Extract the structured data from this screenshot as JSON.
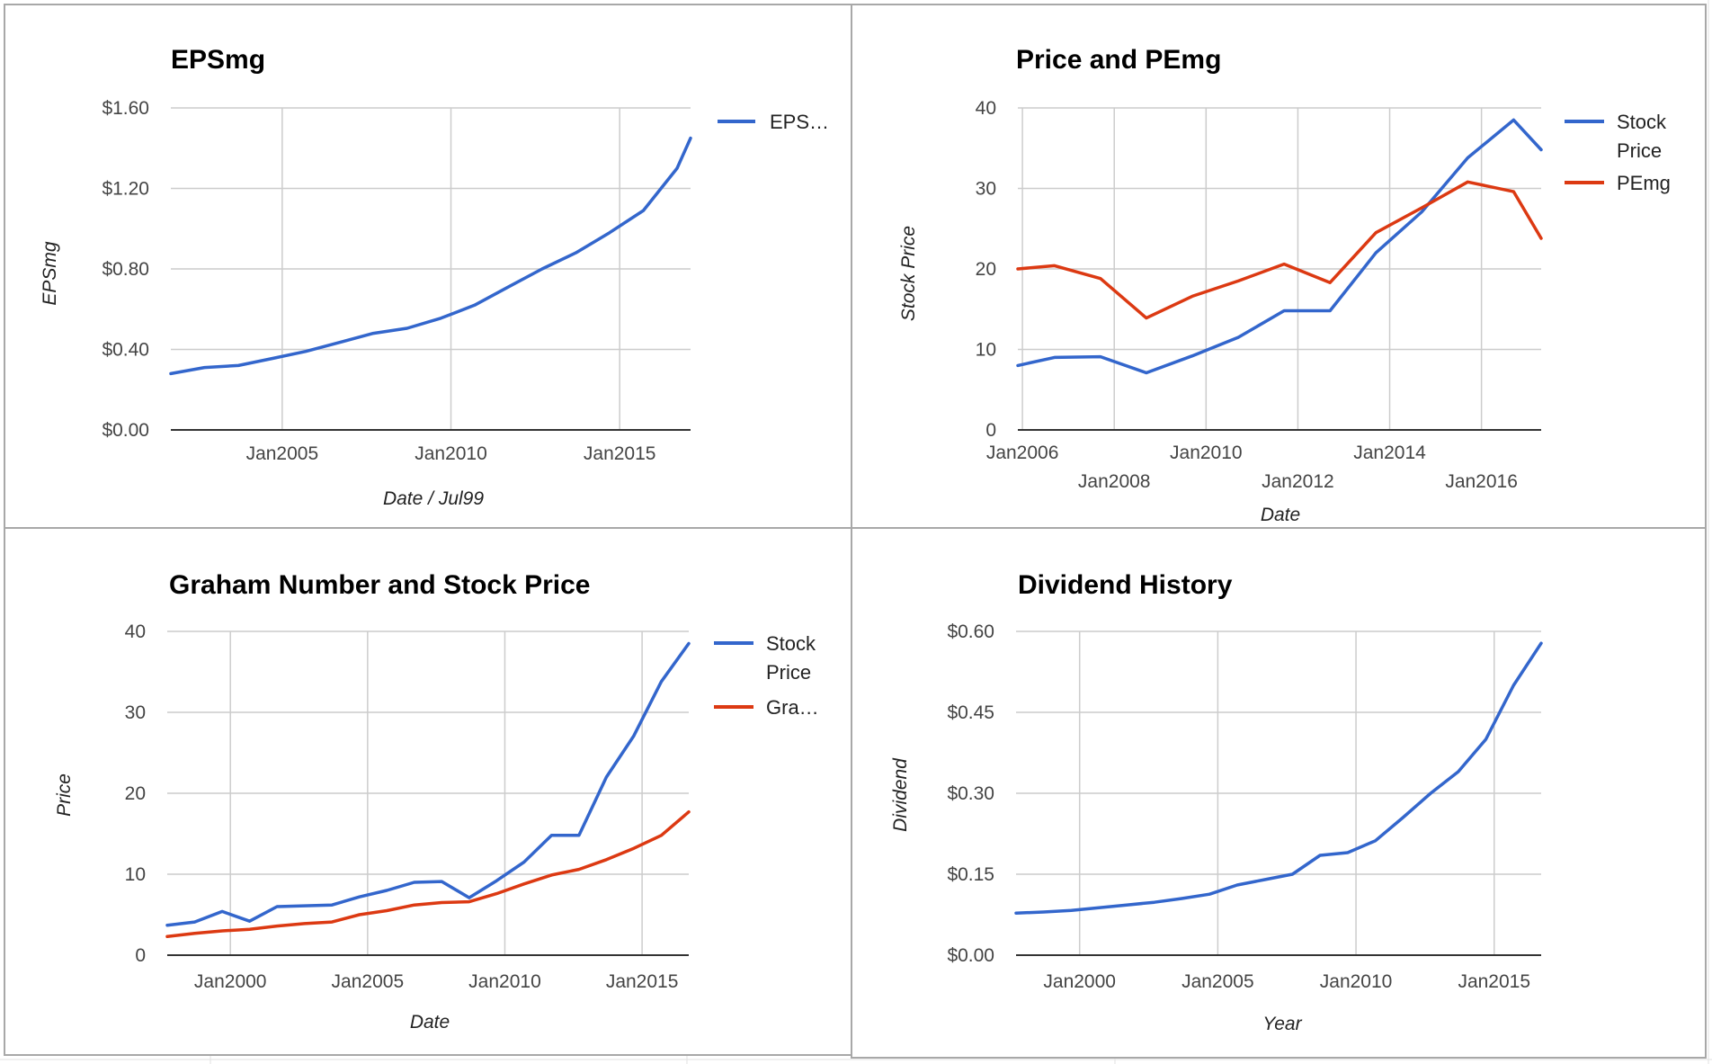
{
  "colors": {
    "blue": "#3366cc",
    "red": "#dc3912"
  },
  "chart_data": [
    {
      "type": "line",
      "title": "EPSmg",
      "xlabel": "Date / Jul99",
      "ylabel": "EPSmg",
      "x_is_date": true,
      "x_range": [
        2001.7,
        2017.1
      ],
      "ylim": [
        0,
        1.6
      ],
      "x_ticks": [
        {
          "v": 2005,
          "label": "Jan2005"
        },
        {
          "v": 2010,
          "label": "Jan2010"
        },
        {
          "v": 2015,
          "label": "Jan2015"
        }
      ],
      "y_ticks": [
        {
          "v": 0,
          "label": "$0.00"
        },
        {
          "v": 0.4,
          "label": "$0.40"
        },
        {
          "v": 0.8,
          "label": "$0.80"
        },
        {
          "v": 1.2,
          "label": "$1.20"
        },
        {
          "v": 1.6,
          "label": "$1.60"
        }
      ],
      "legend_position": "right",
      "series": [
        {
          "name": "EPS…",
          "color": "#3366cc",
          "x": [
            2001.7,
            2002.7,
            2003.7,
            2004.7,
            2005.7,
            2006.7,
            2007.7,
            2008.7,
            2009.7,
            2010.7,
            2011.7,
            2012.7,
            2013.7,
            2014.7,
            2015.7,
            2016.7,
            2017.1
          ],
          "y": [
            0.28,
            0.31,
            0.32,
            0.355,
            0.39,
            0.435,
            0.48,
            0.505,
            0.555,
            0.62,
            0.71,
            0.8,
            0.88,
            0.98,
            1.09,
            1.3,
            1.45
          ]
        }
      ]
    },
    {
      "type": "line",
      "title": "Price and PEmg",
      "xlabel": "Date",
      "ylabel": "Stock Price",
      "x_is_date": true,
      "x_range": [
        2005.9,
        2017.3
      ],
      "ylim": [
        0,
        40
      ],
      "x_ticks": [
        {
          "v": 2006,
          "label": "Jan2006",
          "row": 0
        },
        {
          "v": 2008,
          "label": "Jan2008",
          "row": 1
        },
        {
          "v": 2010,
          "label": "Jan2010",
          "row": 0
        },
        {
          "v": 2012,
          "label": "Jan2012",
          "row": 1
        },
        {
          "v": 2014,
          "label": "Jan2014",
          "row": 0
        },
        {
          "v": 2016,
          "label": "Jan2016",
          "row": 1
        }
      ],
      "y_ticks": [
        {
          "v": 0,
          "label": "0"
        },
        {
          "v": 10,
          "label": "10"
        },
        {
          "v": 20,
          "label": "20"
        },
        {
          "v": 30,
          "label": "30"
        },
        {
          "v": 40,
          "label": "40"
        }
      ],
      "legend_position": "right",
      "series": [
        {
          "name": "Stock Price",
          "color": "#3366cc",
          "x": [
            2005.9,
            2006.7,
            2007.7,
            2008.7,
            2009.7,
            2010.7,
            2011.7,
            2012.7,
            2013.7,
            2014.7,
            2015.7,
            2016.7,
            2017.3
          ],
          "y": [
            8.0,
            9.0,
            9.1,
            7.1,
            9.2,
            11.5,
            14.8,
            14.8,
            22.0,
            27.1,
            33.8,
            38.5,
            34.8
          ]
        },
        {
          "name": "PEmg",
          "color": "#dc3912",
          "x": [
            2005.9,
            2006.7,
            2007.7,
            2008.7,
            2009.7,
            2010.7,
            2011.7,
            2012.7,
            2013.7,
            2014.7,
            2015.7,
            2016.7,
            2017.3
          ],
          "y": [
            20.0,
            20.4,
            18.8,
            13.9,
            16.6,
            18.5,
            20.6,
            18.3,
            24.5,
            27.6,
            30.8,
            29.6,
            23.8
          ]
        }
      ]
    },
    {
      "type": "line",
      "title": "Graham Number and Stock Price",
      "xlabel": "Date",
      "ylabel": "Price",
      "x_is_date": true,
      "x_range": [
        1997.7,
        2016.7
      ],
      "ylim": [
        0,
        40
      ],
      "x_ticks": [
        {
          "v": 2000,
          "label": "Jan2000"
        },
        {
          "v": 2005,
          "label": "Jan2005"
        },
        {
          "v": 2010,
          "label": "Jan2010"
        },
        {
          "v": 2015,
          "label": "Jan2015"
        }
      ],
      "y_ticks": [
        {
          "v": 0,
          "label": "0"
        },
        {
          "v": 10,
          "label": "10"
        },
        {
          "v": 20,
          "label": "20"
        },
        {
          "v": 30,
          "label": "30"
        },
        {
          "v": 40,
          "label": "40"
        }
      ],
      "legend_position": "right",
      "series": [
        {
          "name": "Stock Price",
          "color": "#3366cc",
          "x": [
            1997.7,
            1998.7,
            1999.7,
            2000.7,
            2001.7,
            2002.7,
            2003.7,
            2004.7,
            2005.7,
            2006.7,
            2007.7,
            2008.7,
            2009.7,
            2010.7,
            2011.7,
            2012.7,
            2013.7,
            2014.7,
            2015.7,
            2016.7
          ],
          "y": [
            3.7,
            4.1,
            5.4,
            4.2,
            6.0,
            6.1,
            6.2,
            7.2,
            8.0,
            9.0,
            9.1,
            7.1,
            9.2,
            11.5,
            14.8,
            14.8,
            22.0,
            27.1,
            33.8,
            38.5
          ]
        },
        {
          "name": "Gra…",
          "color": "#dc3912",
          "x": [
            1997.7,
            1998.7,
            1999.7,
            2000.7,
            2001.7,
            2002.7,
            2003.7,
            2004.7,
            2005.7,
            2006.7,
            2007.7,
            2008.7,
            2009.7,
            2010.7,
            2011.7,
            2012.7,
            2013.7,
            2014.7,
            2015.7,
            2016.7
          ],
          "y": [
            2.3,
            2.7,
            3.0,
            3.2,
            3.6,
            3.9,
            4.1,
            5.0,
            5.5,
            6.2,
            6.5,
            6.6,
            7.6,
            8.8,
            9.9,
            10.6,
            11.8,
            13.2,
            14.8,
            17.7
          ]
        }
      ]
    },
    {
      "type": "line",
      "title": "Dividend History",
      "xlabel": "Year",
      "ylabel": "Dividend",
      "x_is_date": true,
      "x_range": [
        1997.7,
        2016.7
      ],
      "ylim": [
        0,
        0.6
      ],
      "x_ticks": [
        {
          "v": 2000,
          "label": "Jan2000"
        },
        {
          "v": 2005,
          "label": "Jan2005"
        },
        {
          "v": 2010,
          "label": "Jan2010"
        },
        {
          "v": 2015,
          "label": "Jan2015"
        }
      ],
      "y_ticks": [
        {
          "v": 0,
          "label": "$0.00"
        },
        {
          "v": 0.15,
          "label": "$0.15"
        },
        {
          "v": 0.3,
          "label": "$0.30"
        },
        {
          "v": 0.45,
          "label": "$0.45"
        },
        {
          "v": 0.6,
          "label": "$0.60"
        }
      ],
      "legend_position": "none",
      "series": [
        {
          "color": "#3366cc",
          "x": [
            1997.7,
            1998.7,
            1999.7,
            2000.7,
            2001.7,
            2002.7,
            2003.7,
            2004.7,
            2005.7,
            2006.7,
            2007.7,
            2008.7,
            2009.7,
            2010.7,
            2011.7,
            2012.7,
            2013.7,
            2014.7,
            2015.7,
            2016.7
          ],
          "y": [
            0.078,
            0.08,
            0.083,
            0.088,
            0.093,
            0.098,
            0.105,
            0.113,
            0.13,
            0.14,
            0.15,
            0.185,
            0.19,
            0.212,
            0.255,
            0.3,
            0.34,
            0.4,
            0.5,
            0.578
          ]
        }
      ]
    }
  ]
}
